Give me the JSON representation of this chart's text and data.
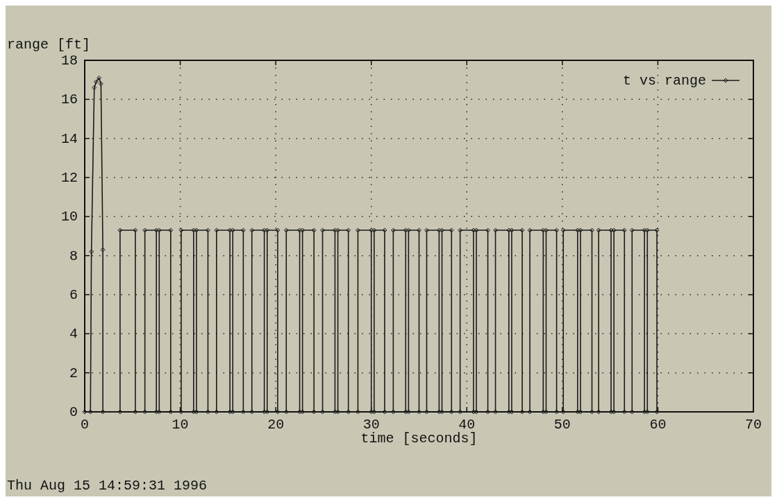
{
  "chart_data": {
    "type": "line",
    "ylabel": "range [ft]",
    "xlabel": "time [seconds]",
    "annotations": [
      "Thu Aug 15 14:59:31 1996"
    ],
    "xlim": [
      0,
      70
    ],
    "xticks": [
      0,
      10,
      20,
      30,
      40,
      50,
      60,
      70
    ],
    "ylim": [
      0,
      18
    ],
    "yticks": [
      0,
      2,
      4,
      6,
      8,
      10,
      12,
      14,
      16,
      18
    ],
    "grid": true,
    "legend": "top right",
    "marker": "diamond",
    "line_style": "solid",
    "series": [
      {
        "name": "t vs range",
        "color": "#1a1a1a",
        "x": [
          0,
          0.6,
          0.7,
          1.0,
          1.2,
          1.5,
          1.7,
          1.9,
          1.9,
          3.7,
          3.7,
          5.3,
          5.3,
          6.3,
          6.3,
          7.5,
          7.5,
          7.8,
          7.8,
          9.0,
          9.0,
          10.1,
          10.1,
          11.4,
          11.4,
          11.7,
          11.7,
          12.9,
          12.9,
          13.8,
          13.8,
          15.2,
          15.2,
          15.5,
          15.5,
          16.6,
          16.6,
          17.5,
          17.5,
          18.8,
          18.8,
          19.1,
          19.1,
          20.2,
          20.2,
          21.1,
          21.1,
          22.5,
          22.5,
          22.8,
          22.8,
          24.0,
          24.0,
          24.9,
          24.9,
          26.2,
          26.2,
          26.5,
          26.5,
          27.6,
          27.6,
          28.6,
          28.6,
          30.0,
          30.0,
          30.3,
          30.3,
          31.4,
          31.4,
          32.3,
          32.3,
          33.6,
          33.6,
          33.9,
          33.9,
          35.0,
          35.0,
          35.8,
          35.8,
          37.1,
          37.1,
          37.4,
          37.4,
          38.4,
          38.4,
          39.3,
          39.3,
          40.7,
          40.7,
          41.0,
          41.0,
          42.2,
          42.2,
          43.0,
          43.0,
          44.4,
          44.4,
          44.7,
          44.7,
          45.8,
          45.8,
          46.6,
          46.6,
          48.0,
          48.0,
          48.3,
          48.3,
          49.4,
          49.4,
          50.1,
          50.1,
          51.6,
          51.6,
          51.9,
          51.9,
          53.1,
          53.1,
          53.8,
          53.8,
          55.1,
          55.1,
          55.4,
          55.4,
          56.5,
          56.5,
          57.3,
          57.3,
          58.6,
          58.6,
          58.9,
          58.9,
          59.9,
          59.9
        ],
        "values": [
          0,
          0,
          8.2,
          16.6,
          16.9,
          17.1,
          16.8,
          8.3,
          0,
          0,
          9.3,
          9.3,
          0,
          0,
          9.3,
          9.3,
          0,
          0,
          9.3,
          9.3,
          0,
          0,
          9.3,
          9.3,
          0,
          0,
          9.3,
          9.3,
          0,
          0,
          9.3,
          9.3,
          0,
          0,
          9.3,
          9.3,
          0,
          0,
          9.3,
          9.3,
          0,
          0,
          9.3,
          9.3,
          0,
          0,
          9.3,
          9.3,
          0,
          0,
          9.3,
          9.3,
          0,
          0,
          9.3,
          9.3,
          0,
          0,
          9.3,
          9.3,
          0,
          0,
          9.3,
          9.3,
          0,
          0,
          9.3,
          9.3,
          0,
          0,
          9.3,
          9.3,
          0,
          0,
          9.3,
          9.3,
          0,
          0,
          9.3,
          9.3,
          0,
          0,
          9.3,
          9.3,
          0,
          0,
          9.3,
          9.3,
          0,
          0,
          9.3,
          9.3,
          0,
          0,
          9.3,
          9.3,
          0,
          0,
          9.3,
          9.3,
          0,
          0,
          9.3,
          9.3,
          0,
          0,
          9.3,
          9.3,
          0,
          0,
          9.3,
          9.3,
          0,
          0,
          9.3,
          9.3,
          0,
          0,
          9.3,
          9.3,
          0,
          0,
          9.3,
          9.3,
          0,
          0,
          9.3,
          9.3,
          0,
          0,
          9.3,
          9.3,
          0
        ]
      }
    ]
  }
}
